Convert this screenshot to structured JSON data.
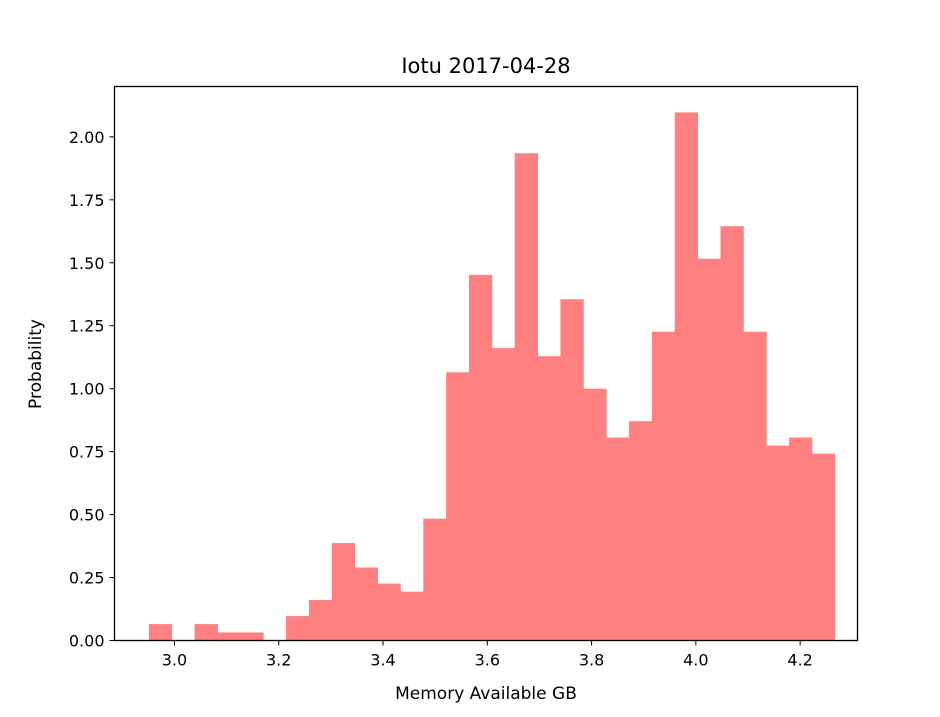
{
  "chart_data": {
    "type": "histogram",
    "title": "Iotu 2017-04-28",
    "xlabel": "Memory Available GB",
    "ylabel": "Probability",
    "xlim": [
      2.885,
      4.31
    ],
    "ylim": [
      0.0,
      2.2
    ],
    "xticks": [
      "3.0",
      "3.2",
      "3.4",
      "3.6",
      "3.8",
      "4.0",
      "4.2"
    ],
    "xtick_values": [
      3.0,
      3.2,
      3.4,
      3.6,
      3.8,
      4.0,
      4.2
    ],
    "yticks": [
      "0.00",
      "0.25",
      "0.50",
      "0.75",
      "1.00",
      "1.25",
      "1.50",
      "1.75",
      "2.00"
    ],
    "ytick_values": [
      0.0,
      0.25,
      0.5,
      0.75,
      1.0,
      1.25,
      1.5,
      1.75,
      2.0
    ],
    "bin_start": 2.951,
    "bin_width": 0.04385,
    "values": [
      0.065,
      0.0,
      0.065,
      0.032,
      0.032,
      0.0,
      0.097,
      0.161,
      0.387,
      0.29,
      0.226,
      0.194,
      0.484,
      1.065,
      1.452,
      1.161,
      1.935,
      1.129,
      1.355,
      1.0,
      0.806,
      0.871,
      1.226,
      2.097,
      1.516,
      1.645,
      1.226,
      0.774,
      0.806,
      0.742
    ],
    "color": "#ff8080",
    "grid": false,
    "legend": "none"
  }
}
